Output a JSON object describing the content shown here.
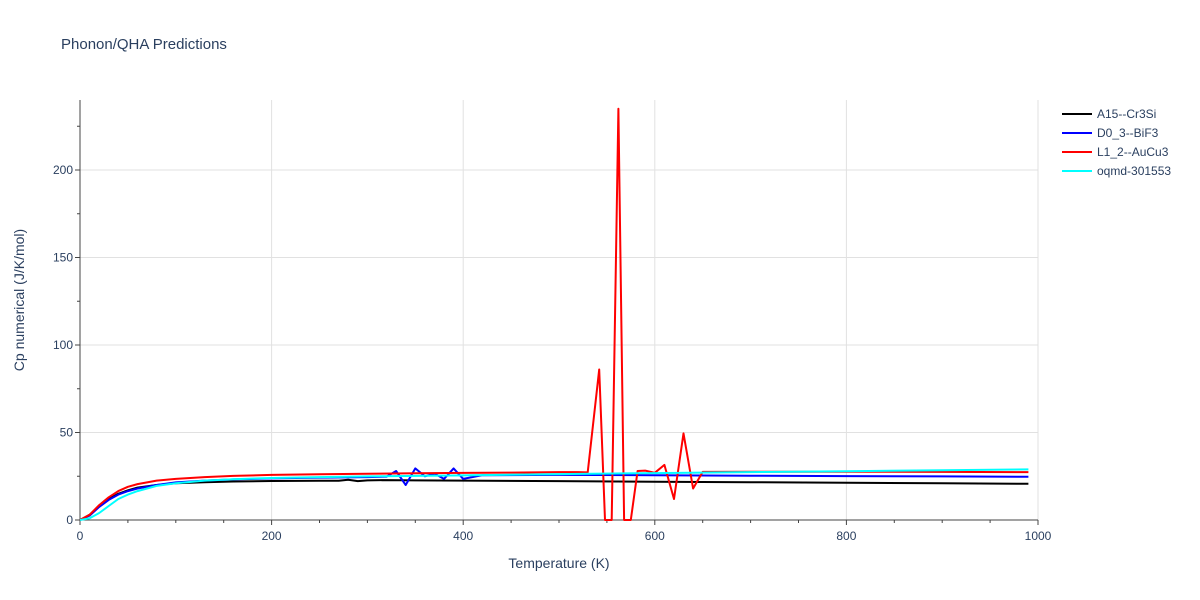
{
  "chart_data": {
    "type": "line",
    "title": "Phonon/QHA Predictions",
    "xlabel": "Temperature (K)",
    "ylabel": "Cp numerical (J/K/mol)",
    "xlim": [
      0,
      1000
    ],
    "ylim": [
      0,
      240
    ],
    "xticks": [
      0,
      200,
      400,
      600,
      800,
      1000
    ],
    "yticks": [
      0,
      50,
      100,
      150,
      200
    ],
    "grid": true,
    "legend_position": "top-right",
    "series": [
      {
        "name": "A15--Cr3Si",
        "color": "#000000",
        "x": [
          0,
          10,
          20,
          30,
          40,
          50,
          60,
          80,
          100,
          130,
          160,
          200,
          250,
          270,
          280,
          290,
          300,
          320,
          350,
          400,
          500,
          600,
          700,
          800,
          900,
          990
        ],
        "y": [
          0,
          3,
          8,
          12,
          15,
          17,
          18.5,
          20,
          21,
          21.6,
          22,
          22.3,
          22.4,
          22.4,
          23,
          22.2,
          22.6,
          22.8,
          22.6,
          22.5,
          22.2,
          21.9,
          21.6,
          21.3,
          21.0,
          20.7
        ]
      },
      {
        "name": "D0_3--BiF3",
        "color": "#0000ff",
        "x": [
          0,
          10,
          20,
          30,
          40,
          50,
          60,
          80,
          100,
          130,
          160,
          200,
          250,
          300,
          320,
          330,
          340,
          350,
          360,
          370,
          380,
          390,
          400,
          420,
          500,
          600,
          700,
          800,
          900,
          990
        ],
        "y": [
          0,
          2.5,
          7.5,
          11.5,
          14.5,
          16.5,
          18,
          20,
          21.5,
          22.5,
          23.2,
          23.8,
          24.2,
          24.5,
          24.8,
          28,
          20,
          29.5,
          25,
          26.5,
          23.5,
          29.5,
          23.5,
          25.6,
          25.8,
          25.6,
          25.3,
          25.1,
          24.9,
          24.7
        ]
      },
      {
        "name": "L1_2--AuCu3",
        "color": "#ff0000",
        "x": [
          0,
          10,
          20,
          30,
          40,
          50,
          60,
          80,
          100,
          130,
          160,
          200,
          250,
          300,
          350,
          400,
          450,
          500,
          520,
          530,
          542,
          548,
          555,
          562,
          568,
          575,
          582,
          590,
          600,
          610,
          620,
          630,
          640,
          650,
          700,
          800,
          900,
          990
        ],
        "y": [
          0,
          3,
          8.5,
          13,
          16.5,
          19,
          20.5,
          22.5,
          23.5,
          24.5,
          25.2,
          25.8,
          26.1,
          26.4,
          26.7,
          26.9,
          27.1,
          27.4,
          27.4,
          27.2,
          86,
          0,
          0,
          235,
          0,
          0,
          28,
          28.2,
          27,
          31.5,
          12,
          49.5,
          18,
          27.5,
          27.6,
          27.6,
          27.5,
          27.4
        ]
      },
      {
        "name": "oqmd-301553",
        "color": "#00ffff",
        "x": [
          0,
          10,
          20,
          30,
          40,
          50,
          60,
          80,
          100,
          130,
          160,
          200,
          250,
          300,
          400,
          500,
          600,
          700,
          800,
          900,
          990
        ],
        "y": [
          0,
          1,
          4,
          8,
          12,
          14.5,
          16.5,
          19.5,
          21,
          22.5,
          23.3,
          24,
          24.5,
          24.9,
          25.5,
          26.2,
          26.8,
          27.4,
          27.9,
          28.4,
          28.9
        ]
      }
    ]
  }
}
